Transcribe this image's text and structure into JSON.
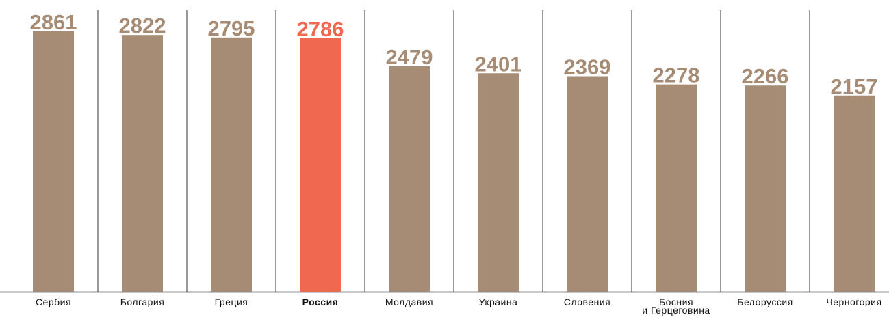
{
  "chart_data": {
    "type": "bar",
    "categories": [
      "Сербия",
      "Болгария",
      "Греция",
      "Россия",
      "Молдавия",
      "Украина",
      "Словения",
      "Босния\nи Герцеговина",
      "Белоруссия",
      "Черногория"
    ],
    "values": [
      2861,
      2822,
      2795,
      2786,
      2479,
      2401,
      2369,
      2278,
      2266,
      2157
    ],
    "colors": [
      "#a68c74",
      "#a68c74",
      "#a68c74",
      "#f0684f",
      "#a68c74",
      "#a68c74",
      "#a68c74",
      "#a68c74",
      "#a68c74",
      "#a68c74"
    ]
  }
}
